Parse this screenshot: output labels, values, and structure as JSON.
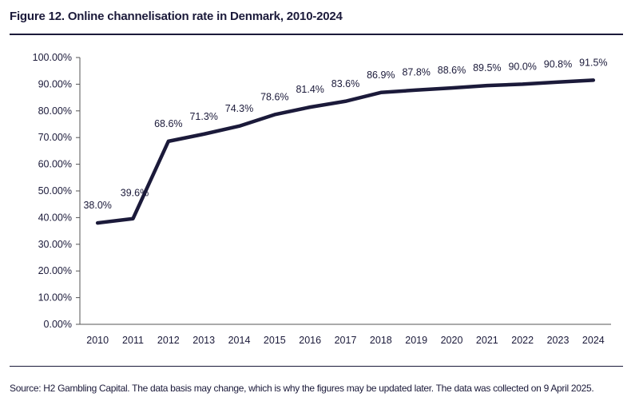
{
  "title": "Figure 12. Online channelisation rate in Denmark, 2010-2024",
  "source": "Source: H2 Gambling Capital. The data basis may change, which is why the figures may be updated later. The data was collected on 9 April 2025.",
  "colors": {
    "line": "#1b1a3a",
    "axis": "#555555",
    "text": "#1b1a3a"
  },
  "chart_data": {
    "type": "line",
    "title": "Figure 12. Online channelisation rate in Denmark, 2010-2024",
    "xlabel": "",
    "ylabel": "",
    "ylim": [
      0,
      100
    ],
    "grid": false,
    "categories": [
      "2010",
      "2011",
      "2012",
      "2013",
      "2014",
      "2015",
      "2016",
      "2017",
      "2018",
      "2019",
      "2020",
      "2021",
      "2022",
      "2023",
      "2024"
    ],
    "yticks": [
      "0.00%",
      "10.00%",
      "20.00%",
      "30.00%",
      "40.00%",
      "50.00%",
      "60.00%",
      "70.00%",
      "80.00%",
      "90.00%",
      "100.00%"
    ],
    "series": [
      {
        "values": [
          38.0,
          39.6,
          68.6,
          71.3,
          74.3,
          78.6,
          81.4,
          83.6,
          86.9,
          87.8,
          88.6,
          89.5,
          90.0,
          90.8,
          91.5
        ],
        "labels": [
          "38.0%",
          "39.6%",
          "68.6%",
          "71.3%",
          "74.3%",
          "78.6%",
          "81.4%",
          "83.6%",
          "86.9%",
          "87.8%",
          "88.6%",
          "89.5%",
          "90.0%",
          "90.8%",
          "91.5%"
        ]
      }
    ]
  }
}
